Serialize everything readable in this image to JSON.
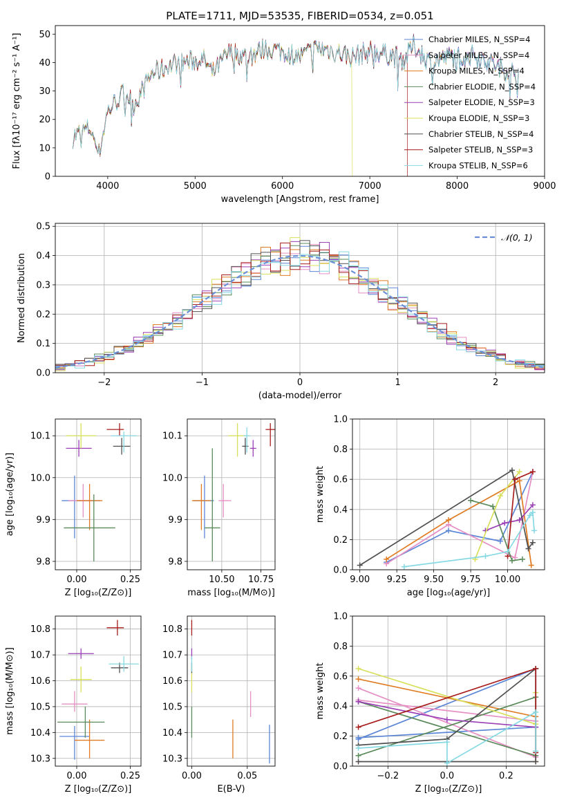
{
  "colors": {
    "chabrier_miles": "#5b86d6",
    "salpeter_miles": "#e58fc4",
    "kroupa_miles": "#e07b22",
    "chabrier_elodie": "#5a8a5a",
    "salpeter_elodie": "#9a3fb5",
    "kroupa_elodie": "#d8e05a",
    "chabrier_stelib": "#505050",
    "salpeter_stelib": "#a81c1c",
    "kroupa_stelib": "#86d9e3"
  },
  "chart_data": [
    {
      "id": "spectrum",
      "type": "line",
      "title": "PLATE=1711, MJD=53535, FIBERID=0534, z=0.051",
      "xlabel": "wavelength [Angstrom, rest frame]",
      "ylabel": "Flux [fλ10⁻¹⁷ erg cm⁻² s⁻¹ A⁻¹]",
      "xlim": [
        3400,
        9000
      ],
      "ylim": [
        0,
        53
      ],
      "xticks": [
        4000,
        5000,
        6000,
        7000,
        8000,
        9000
      ],
      "yticks": [
        0,
        10,
        20,
        30,
        40,
        50
      ],
      "legend_position": "right",
      "legend": [
        "Chabrier MILES, N_SSP=4",
        "Salpeter MILES, N_SSP=4",
        "Kroupa MILES, N_SSP=4",
        "Chabrier ELODIE, N_SSP=4",
        "Salpeter ELODIE, N_SSP=3",
        "Kroupa ELODIE, N_SSP=3",
        "Chabrier STELIB, N_SSP=4",
        "Salpeter STELIB, N_SSP=3",
        "Kroupa STELIB, N_SSP=6"
      ],
      "continuum": [
        [
          3600,
          14
        ],
        [
          3800,
          17
        ],
        [
          3900,
          8
        ],
        [
          4000,
          23
        ],
        [
          4200,
          30
        ],
        [
          4300,
          25
        ],
        [
          4500,
          36
        ],
        [
          4800,
          40
        ],
        [
          5100,
          41
        ],
        [
          5200,
          36
        ],
        [
          5400,
          44
        ],
        [
          5600,
          42
        ],
        [
          5800,
          45
        ],
        [
          6000,
          44
        ],
        [
          6200,
          42
        ],
        [
          6400,
          45
        ],
        [
          6600,
          44
        ],
        [
          6800,
          42
        ],
        [
          7000,
          44
        ],
        [
          7200,
          43
        ],
        [
          7400,
          41
        ],
        [
          7500,
          46
        ],
        [
          7700,
          40
        ],
        [
          7900,
          42
        ],
        [
          8200,
          43
        ],
        [
          8500,
          38
        ],
        [
          8700,
          36
        ]
      ],
      "ends": {
        "kroupa_elodie_short_at": 6800,
        "salpeter_stelib_short_at": 7430
      }
    },
    {
      "id": "residuals",
      "type": "histogram",
      "xlabel": "(data-model)/error",
      "ylabel": "Normed distribution",
      "xlim": [
        -2.5,
        2.5
      ],
      "ylim": [
        0,
        0.51
      ],
      "xticks": [
        -2,
        -1,
        0,
        1,
        2
      ],
      "yticks": [
        0.0,
        0.1,
        0.2,
        0.3,
        0.4,
        0.5
      ],
      "grid": true,
      "legend": [
        "𝒩(0, 1)"
      ],
      "legend_position": "top-right",
      "bin_width": 0.1
    },
    {
      "id": "age_vs_Z",
      "type": "scatter",
      "xlabel": "Z [log₁₀(Z/Z⊙)]",
      "ylabel": "age  [log₁₀(age/yr)]",
      "xlim": [
        -0.1,
        0.3
      ],
      "ylim": [
        9.78,
        10.14
      ],
      "xticks": [
        0.0,
        0.25
      ],
      "yticks": [
        9.8,
        9.9,
        10.0,
        10.1
      ],
      "grid": true,
      "points": [
        {
          "k": "chabrier_miles",
          "x": -0.01,
          "y": 9.945,
          "xerr": [
            0.06,
            0.12
          ],
          "yerr": [
            0.09,
            0.06
          ]
        },
        {
          "k": "salpeter_miles",
          "x": 0.03,
          "y": 9.945,
          "xerr": [
            0.07,
            0.04
          ],
          "yerr": [
            0.04,
            0.04
          ]
        },
        {
          "k": "kroupa_miles",
          "x": 0.06,
          "y": 9.945,
          "xerr": [
            0.06,
            0.06
          ],
          "yerr": [
            0.07,
            0.04
          ]
        },
        {
          "k": "chabrier_elodie",
          "x": 0.08,
          "y": 9.88,
          "xerr": [
            0.14,
            0.1
          ],
          "yerr": [
            0.08,
            0.08
          ]
        },
        {
          "k": "salpeter_elodie",
          "x": 0.01,
          "y": 10.07,
          "xerr": [
            0.06,
            0.06
          ],
          "yerr": [
            0.02,
            0.02
          ]
        },
        {
          "k": "kroupa_elodie",
          "x": 0.02,
          "y": 10.1,
          "xerr": [
            0.07,
            0.07
          ],
          "yerr": [
            0.03,
            0.03
          ]
        },
        {
          "k": "chabrier_stelib",
          "x": 0.21,
          "y": 10.075,
          "xerr": [
            0.04,
            0.04
          ],
          "yerr": [
            0.02,
            0.02
          ]
        },
        {
          "k": "salpeter_stelib",
          "x": 0.2,
          "y": 10.115,
          "xerr": [
            0.06,
            0.02
          ],
          "yerr": [
            0.015,
            0.015
          ]
        },
        {
          "k": "kroupa_stelib",
          "x": 0.22,
          "y": 10.1,
          "xerr": [
            0.06,
            0.06
          ],
          "yerr": [
            0.04,
            0.01
          ]
        }
      ]
    },
    {
      "id": "age_vs_mass",
      "type": "scatter",
      "xlabel": "mass [log₁₀(M/M⊙)]",
      "xlim": [
        10.28,
        10.84
      ],
      "ylim": [
        9.78,
        10.14
      ],
      "xticks": [
        10.5,
        10.75
      ],
      "yticks": [
        9.8,
        9.9,
        10.0,
        10.1
      ],
      "grid": true,
      "points": [
        {
          "k": "chabrier_miles",
          "x": 10.39,
          "y": 9.945,
          "xerr": [
            0.07,
            0.06
          ],
          "yerr": [
            0.09,
            0.06
          ]
        },
        {
          "k": "salpeter_miles",
          "x": 10.51,
          "y": 9.945,
          "xerr": [
            0.03,
            0.05
          ],
          "yerr": [
            0.04,
            0.04
          ]
        },
        {
          "k": "kroupa_miles",
          "x": 10.37,
          "y": 9.945,
          "xerr": [
            0.06,
            0.06
          ],
          "yerr": [
            0.07,
            0.04
          ]
        },
        {
          "k": "chabrier_elodie",
          "x": 10.44,
          "y": 9.88,
          "xerr": [
            0.05,
            0.05
          ],
          "yerr": [
            0.08,
            0.19
          ]
        },
        {
          "k": "salpeter_elodie",
          "x": 10.7,
          "y": 10.07,
          "xerr": [
            0.02,
            0.02
          ],
          "yerr": [
            0.02,
            0.02
          ]
        },
        {
          "k": "kroupa_elodie",
          "x": 10.6,
          "y": 10.1,
          "xerr": [
            0.06,
            0.06
          ],
          "yerr": [
            0.05,
            0.03
          ]
        },
        {
          "k": "chabrier_stelib",
          "x": 10.65,
          "y": 10.075,
          "xerr": [
            0.02,
            0.02
          ],
          "yerr": [
            0.02,
            0.02
          ]
        },
        {
          "k": "salpeter_stelib",
          "x": 10.81,
          "y": 10.115,
          "xerr": [
            0.03,
            0.03
          ],
          "yerr": [
            0.04,
            0.015
          ]
        },
        {
          "k": "kroupa_stelib",
          "x": 10.66,
          "y": 10.1,
          "xerr": [
            0.02,
            0.02
          ],
          "yerr": [
            0.04,
            0.02
          ]
        }
      ]
    },
    {
      "id": "weight_vs_age",
      "type": "line",
      "xlabel": "age  [log₁₀(age/yr)]",
      "ylabel": "mass weight",
      "xlim": [
        8.95,
        10.25
      ],
      "ylim": [
        0,
        1
      ],
      "xticks": [
        9.0,
        9.25,
        9.5,
        9.75,
        10.0
      ],
      "yticks": [
        0.0,
        0.2,
        0.4,
        0.6,
        0.8,
        1.0
      ],
      "grid": true,
      "series": [
        {
          "k": "chabrier_miles",
          "x": [
            9.18,
            9.6,
            9.95,
            10.17
          ],
          "y": [
            0.05,
            0.26,
            0.19,
            0.65
          ]
        },
        {
          "k": "salpeter_miles",
          "x": [
            9.18,
            9.6,
            10.05,
            10.17
          ],
          "y": [
            0.04,
            0.3,
            0.08,
            0.65
          ]
        },
        {
          "k": "kroupa_miles",
          "x": [
            9.18,
            9.6,
            10.08,
            10.16
          ],
          "y": [
            0.07,
            0.33,
            0.59,
            0.03
          ]
        },
        {
          "k": "chabrier_elodie",
          "x": [
            9.75,
            9.9,
            10.03,
            10.1
          ],
          "y": [
            0.46,
            0.42,
            0.06,
            0.07
          ]
        },
        {
          "k": "salpeter_elodie",
          "x": [
            9.85,
            9.98,
            10.08,
            10.17
          ],
          "y": [
            0.26,
            0.31,
            0.33,
            0.43
          ]
        },
        {
          "k": "kroupa_elodie",
          "x": [
            9.78,
            9.95,
            10.08
          ],
          "y": [
            0.07,
            0.49,
            0.65
          ]
        },
        {
          "k": "chabrier_stelib",
          "x": [
            9.0,
            10.03,
            10.14,
            10.17
          ],
          "y": [
            0.03,
            0.66,
            0.14,
            0.18
          ]
        },
        {
          "k": "salpeter_stelib",
          "x": [
            10.0,
            10.05,
            10.17
          ],
          "y": [
            0.09,
            0.6,
            0.65
          ]
        },
        {
          "k": "kroupa_stelib",
          "x": [
            9.3,
            9.85,
            10.0,
            10.15,
            10.17,
            10.18
          ],
          "y": [
            0.02,
            0.09,
            0.12,
            0.36,
            0.38,
            0.26
          ]
        }
      ]
    },
    {
      "id": "mass_vs_Z",
      "type": "scatter",
      "xlabel": "Z [log₁₀(Z/Z⊙)]",
      "ylabel": "mass [log₁₀(M/M⊙)]",
      "xlim": [
        -0.1,
        0.3
      ],
      "ylim": [
        10.27,
        10.85
      ],
      "xticks": [
        0.0,
        0.25
      ],
      "yticks": [
        10.3,
        10.4,
        10.5,
        10.6,
        10.7,
        10.8
      ],
      "grid": true,
      "points": [
        {
          "k": "chabrier_miles",
          "x": -0.01,
          "y": 10.385,
          "xerr": [
            0.07,
            0.07
          ],
          "yerr": [
            0.09,
            0.04
          ]
        },
        {
          "k": "salpeter_miles",
          "x": -0.01,
          "y": 10.51,
          "xerr": [
            0.06,
            0.06
          ],
          "yerr": [
            0.03,
            0.05
          ]
        },
        {
          "k": "kroupa_miles",
          "x": 0.06,
          "y": 10.37,
          "xerr": [
            0.07,
            0.07
          ],
          "yerr": [
            0.07,
            0.08
          ]
        },
        {
          "k": "chabrier_elodie",
          "x": 0.04,
          "y": 10.44,
          "xerr": [
            0.13,
            0.09
          ],
          "yerr": [
            0.06,
            0.06
          ]
        },
        {
          "k": "salpeter_elodie",
          "x": 0.02,
          "y": 10.705,
          "xerr": [
            0.06,
            0.06
          ],
          "yerr": [
            0.02,
            0.02
          ]
        },
        {
          "k": "kroupa_elodie",
          "x": 0.02,
          "y": 10.605,
          "xerr": [
            0.05,
            0.05
          ],
          "yerr": [
            0.05,
            0.05
          ]
        },
        {
          "k": "chabrier_stelib",
          "x": 0.2,
          "y": 10.65,
          "xerr": [
            0.04,
            0.04
          ],
          "yerr": [
            0.02,
            0.02
          ]
        },
        {
          "k": "salpeter_stelib",
          "x": 0.19,
          "y": 10.805,
          "xerr": [
            0.05,
            0.03
          ],
          "yerr": [
            0.03,
            0.03
          ]
        },
        {
          "k": "kroupa_stelib",
          "x": 0.22,
          "y": 10.665,
          "xerr": [
            0.07,
            0.07
          ],
          "yerr": [
            0.03,
            0.03
          ]
        }
      ]
    },
    {
      "id": "mass_vs_ebv",
      "type": "scatter",
      "xlabel": "E(B-V)",
      "xlim": [
        -0.004,
        0.075
      ],
      "ylim": [
        10.27,
        10.85
      ],
      "xticks": [
        0.0,
        0.05
      ],
      "yticks": [
        10.3,
        10.4,
        10.5,
        10.6,
        10.7,
        10.8
      ],
      "grid": true,
      "points": [
        {
          "k": "chabrier_miles",
          "x": 0.07,
          "y": 10.36,
          "xerr": [
            0,
            0
          ],
          "yerr": [
            0.08,
            0.07
          ]
        },
        {
          "k": "salpeter_miles",
          "x": 0.053,
          "y": 10.51,
          "xerr": [
            0,
            0
          ],
          "yerr": [
            0.05,
            0.05
          ]
        },
        {
          "k": "kroupa_miles",
          "x": 0.037,
          "y": 10.37,
          "xerr": [
            0,
            0
          ],
          "yerr": [
            0.07,
            0.08
          ]
        },
        {
          "k": "chabrier_elodie",
          "x": 0.0,
          "y": 10.44,
          "xerr": [
            0,
            0
          ],
          "yerr": [
            0.06,
            0.06
          ]
        },
        {
          "k": "salpeter_elodie",
          "x": 0.0,
          "y": 10.705,
          "xerr": [
            0,
            0
          ],
          "yerr": [
            0.02,
            0.02
          ]
        },
        {
          "k": "kroupa_elodie",
          "x": 0.0,
          "y": 10.605,
          "xerr": [
            0,
            0
          ],
          "yerr": [
            0.05,
            0.05
          ]
        },
        {
          "k": "chabrier_stelib",
          "x": 0.0,
          "y": 10.65,
          "xerr": [
            0,
            0
          ],
          "yerr": [
            0.02,
            0.02
          ]
        },
        {
          "k": "salpeter_stelib",
          "x": 0.0,
          "y": 10.805,
          "xerr": [
            0,
            0
          ],
          "yerr": [
            0.03,
            0.03
          ]
        },
        {
          "k": "kroupa_stelib",
          "x": 0.0,
          "y": 10.665,
          "xerr": [
            0,
            0
          ],
          "yerr": [
            0.03,
            0.03
          ]
        }
      ]
    },
    {
      "id": "weight_vs_Z",
      "type": "line",
      "xlabel": "Z [log₁₀(Z/Z⊙)]",
      "ylabel": "mass weight",
      "xlim": [
        -0.32,
        0.33
      ],
      "ylim": [
        0,
        1
      ],
      "xticks": [
        -0.2,
        0.0,
        0.2
      ],
      "yticks": [
        0.0,
        0.2,
        0.4,
        0.6,
        0.8,
        1.0
      ],
      "grid": true,
      "series": [
        {
          "k": "chabrier_miles",
          "x": [
            -0.3,
            0.3,
            0.3,
            -0.3
          ],
          "y": [
            0.19,
            0.26,
            0.65,
            0.18
          ]
        },
        {
          "k": "salpeter_miles",
          "x": [
            -0.3,
            0.3,
            0.3,
            -0.3
          ],
          "y": [
            0.44,
            0.3,
            0.06,
            0.52
          ]
        },
        {
          "k": "kroupa_miles",
          "x": [
            -0.3,
            0.3,
            0.3
          ],
          "y": [
            0.58,
            0.33,
            0.03
          ]
        },
        {
          "k": "chabrier_elodie",
          "x": [
            -0.3,
            0.3,
            0.3,
            -0.3
          ],
          "y": [
            0.07,
            0.46,
            0.07,
            0.43
          ]
        },
        {
          "k": "salpeter_elodie",
          "x": [
            -0.3,
            0.0,
            0.3
          ],
          "y": [
            0.43,
            0.31,
            0.26
          ]
        },
        {
          "k": "kroupa_elodie",
          "x": [
            -0.3,
            0.3,
            0.3
          ],
          "y": [
            0.65,
            0.28,
            0.49
          ]
        },
        {
          "k": "chabrier_stelib",
          "x": [
            -0.3,
            0.0,
            0.3,
            0.3,
            -0.3
          ],
          "y": [
            0.14,
            0.18,
            0.65,
            0.03,
            0.03
          ]
        },
        {
          "k": "salpeter_stelib",
          "x": [
            -0.3,
            0.3,
            0.3
          ],
          "y": [
            0.26,
            0.65,
            0.09
          ]
        },
        {
          "k": "kroupa_stelib",
          "x": [
            -0.3,
            0.0,
            0.0,
            0.3,
            0.3
          ],
          "y": [
            0.12,
            0.16,
            0.02,
            0.36,
            0.1
          ]
        }
      ]
    }
  ]
}
